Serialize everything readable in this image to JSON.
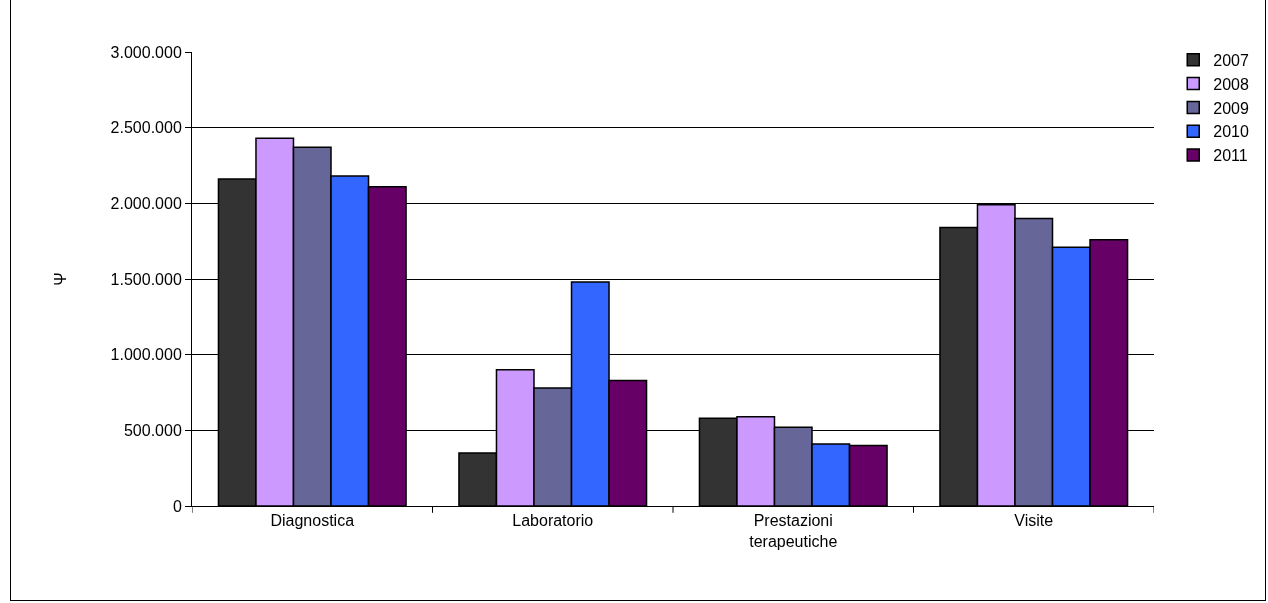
{
  "chart_data": {
    "type": "bar",
    "ylabel": "Ψ",
    "categories": [
      "Diagnostica",
      "Laboratorio",
      "Prestazioni terapeutiche",
      "Visite"
    ],
    "series": [
      {
        "name": "2007",
        "color": "#333333",
        "values": [
          2160000,
          350000,
          580000,
          1840000
        ]
      },
      {
        "name": "2008",
        "color": "#cc99ff",
        "values": [
          2430000,
          900000,
          590000,
          1990000
        ]
      },
      {
        "name": "2009",
        "color": "#666699",
        "values": [
          2370000,
          780000,
          520000,
          1900000
        ]
      },
      {
        "name": "2010",
        "color": "#3366ff",
        "values": [
          2180000,
          1480000,
          410000,
          1710000
        ]
      },
      {
        "name": "2011",
        "color": "#660066",
        "values": [
          2110000,
          830000,
          400000,
          1760000
        ]
      }
    ],
    "ylim": [
      0,
      3000000
    ],
    "yticks": [
      0,
      {
        "value": 500000,
        "label": "500.000"
      },
      {
        "value": 1000000,
        "label": "1.000.000"
      },
      {
        "value": 1500000,
        "label": "1.500.000"
      },
      {
        "value": 2000000,
        "label": "2.000.000"
      },
      {
        "value": 2500000,
        "label": "2.500.000"
      },
      {
        "value": 3000000,
        "label": "3.000.000"
      }
    ],
    "grid": "y",
    "legend": "right"
  }
}
